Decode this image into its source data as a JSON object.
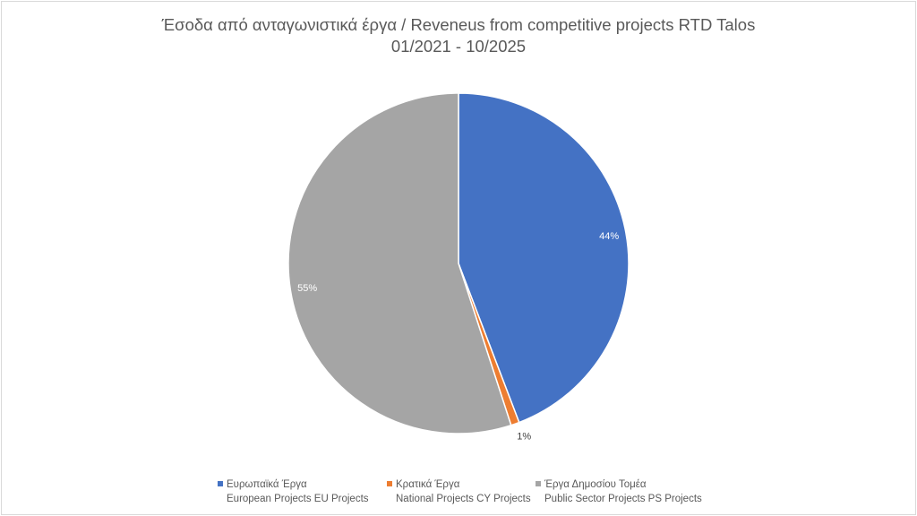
{
  "chart_data": {
    "type": "pie",
    "title": "Έσοδα από ανταγωνιστικά έργα / Reveneus from competitive projects RTD Talos",
    "subtitle": "01/2021 - 10/2025",
    "categories": [
      "Ευρωπαϊκά Έργα European Projects EU Projects",
      "Κρατικά Έργα National Projects CY Projects",
      "Έργα Δημοσίου Τομέα Public Sector Projects PS Projects"
    ],
    "values": [
      44.2,
      0.8,
      55.0
    ],
    "data_labels": [
      "44%",
      "1%",
      "55%"
    ],
    "colors": [
      "#4472c4",
      "#ed7d31",
      "#a5a5a5"
    ],
    "legend_position": "bottom",
    "legend": [
      {
        "line1": "Ευρωπαϊκά Έργα",
        "line2": "European Projects EU Projects"
      },
      {
        "line1": "Κρατικά Έργα",
        "line2": "National Projects CY Projects"
      },
      {
        "line1": "Έργα Δημοσίου Τομέα",
        "line2": "Public Sector Projects PS Projects"
      }
    ]
  }
}
